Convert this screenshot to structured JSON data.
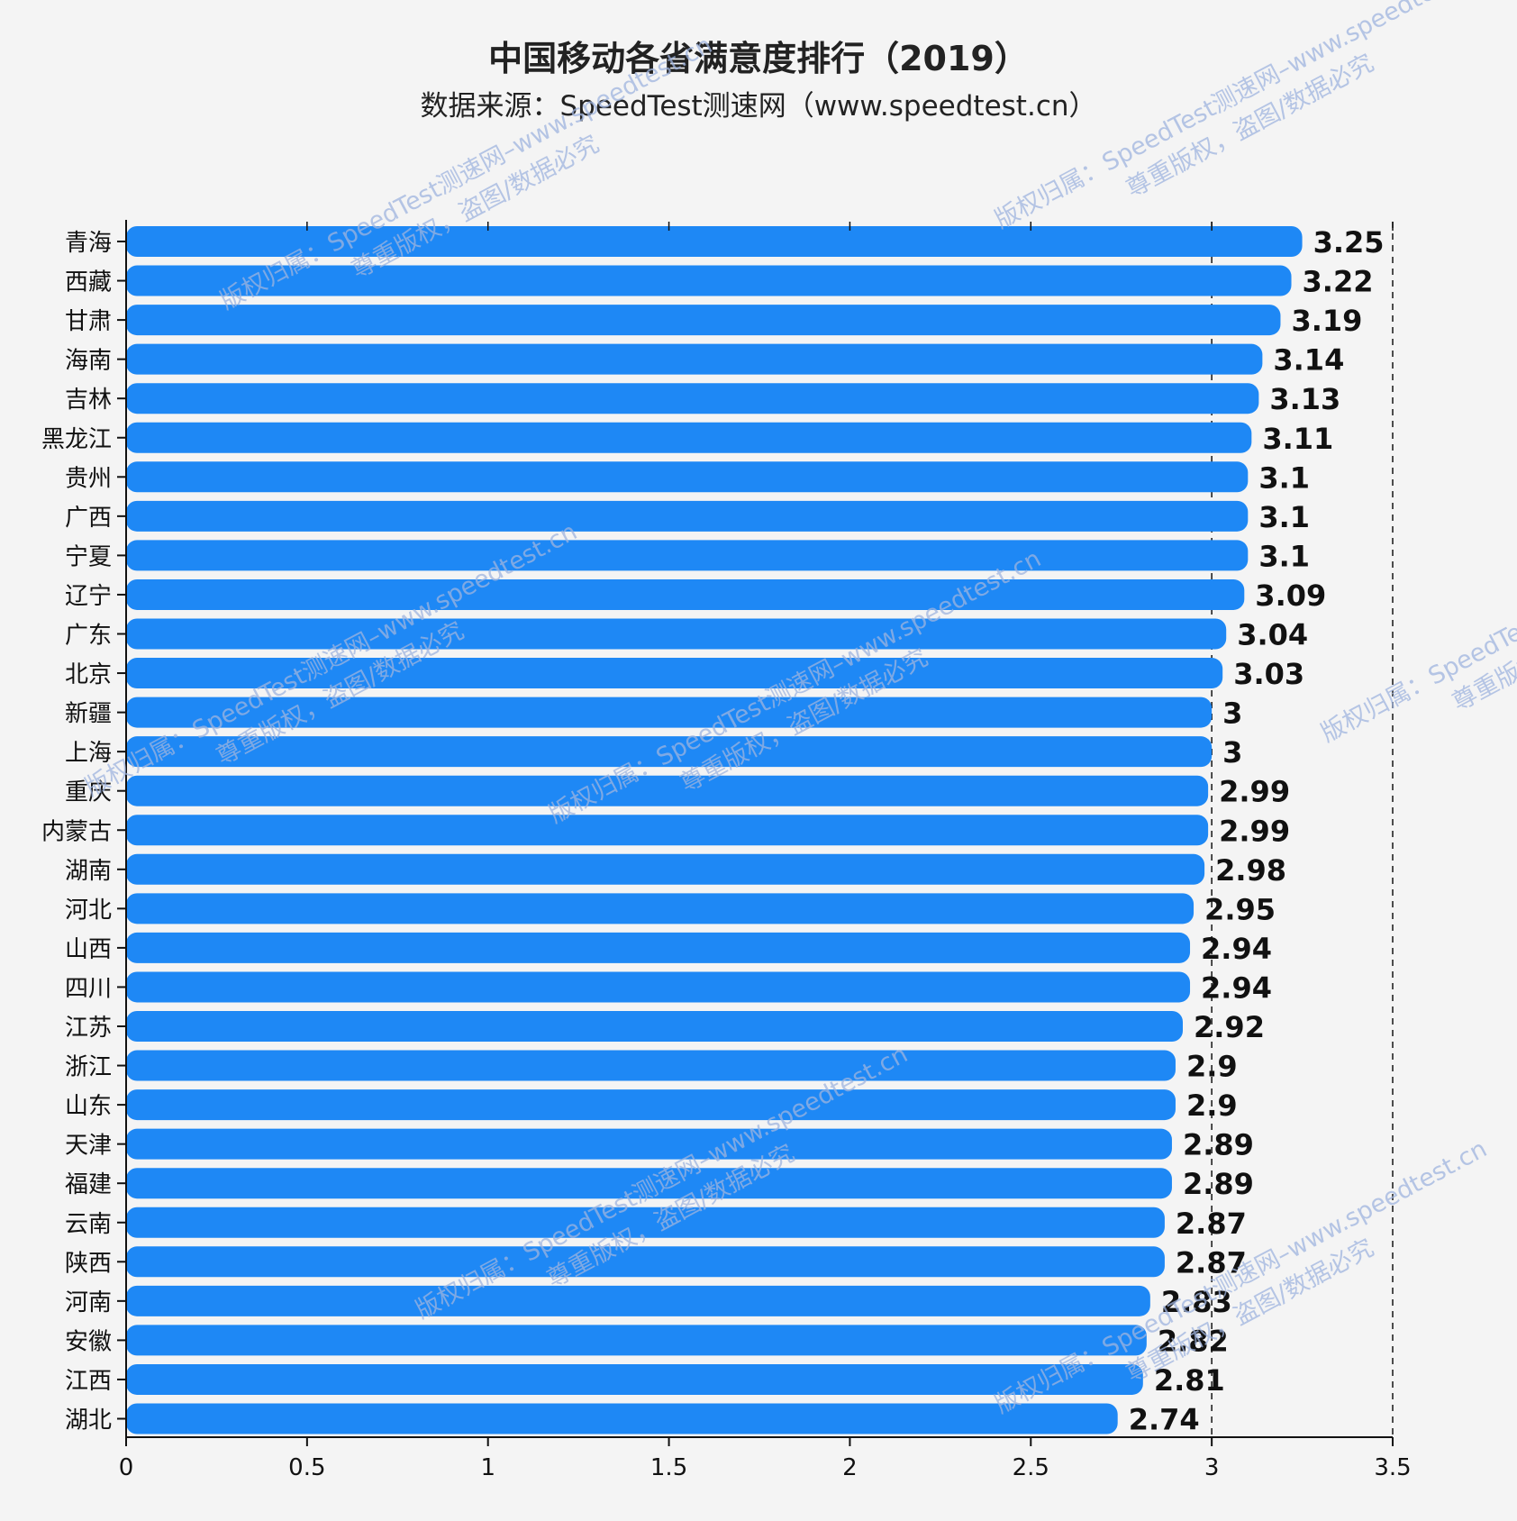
{
  "chart_data": {
    "type": "bar",
    "orientation": "horizontal",
    "title": "中国移动各省满意度排行（2019）",
    "subtitle": "数据来源：SpeedTest测速网（www.speedtest.cn）",
    "categories": [
      "青海",
      "西藏",
      "甘肃",
      "海南",
      "吉林",
      "黑龙江",
      "贵州",
      "广西",
      "宁夏",
      "辽宁",
      "广东",
      "北京",
      "新疆",
      "上海",
      "重庆",
      "内蒙古",
      "湖南",
      "河北",
      "山西",
      "四川",
      "江苏",
      "浙江",
      "山东",
      "天津",
      "福建",
      "云南",
      "陕西",
      "河南",
      "安徽",
      "江西",
      "湖北"
    ],
    "values": [
      3.25,
      3.22,
      3.19,
      3.14,
      3.13,
      3.11,
      3.1,
      3.1,
      3.1,
      3.09,
      3.04,
      3.03,
      3,
      3,
      2.99,
      2.99,
      2.98,
      2.95,
      2.94,
      2.94,
      2.92,
      2.9,
      2.9,
      2.89,
      2.89,
      2.87,
      2.87,
      2.83,
      2.82,
      2.81,
      2.74
    ],
    "value_labels": [
      "3.25",
      "3.22",
      "3.19",
      "3.14",
      "3.13",
      "3.11",
      "3.1",
      "3.1",
      "3.1",
      "3.09",
      "3.04",
      "3.03",
      "3",
      "3",
      "2.99",
      "2.99",
      "2.98",
      "2.95",
      "2.94",
      "2.94",
      "2.92",
      "2.9",
      "2.9",
      "2.89",
      "2.89",
      "2.87",
      "2.87",
      "2.83",
      "2.82",
      "2.81",
      "2.74"
    ],
    "xlim": [
      0,
      3.5
    ],
    "xticks": [
      0,
      0.5,
      1,
      1.5,
      2,
      2.5,
      3,
      3.5
    ],
    "xtick_labels": [
      "0",
      "0.5",
      "1",
      "1.5",
      "2",
      "2.5",
      "3",
      "3.5"
    ],
    "reference_lines": [
      3,
      3.5
    ],
    "grid": false,
    "legend": "none",
    "xlabel": "",
    "ylabel": "",
    "colors": {
      "bar": "#1e88f5",
      "axis": "#111111",
      "text": "#111111",
      "background": "#f4f4f4",
      "watermark": "#9fb4df"
    }
  },
  "watermark": {
    "line1": "版权归属：SpeedTest测速网–www.speedtest.cn",
    "line2": "尊重版权，盗图/数据必究"
  }
}
